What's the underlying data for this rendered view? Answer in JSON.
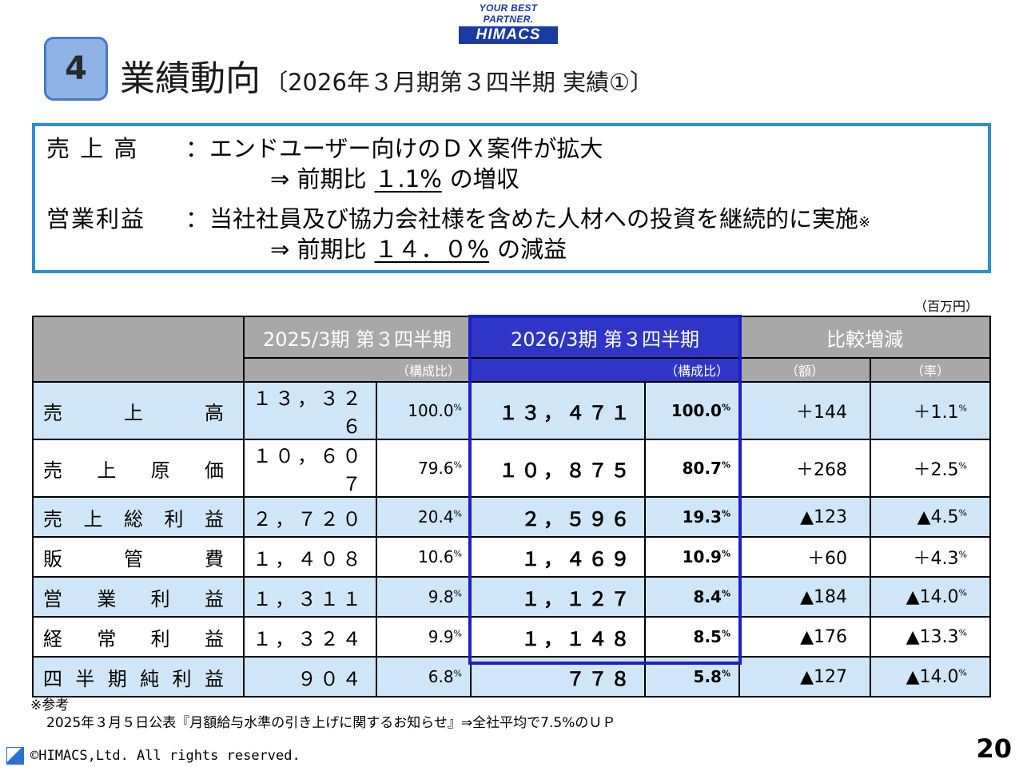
{
  "logo": {
    "tagline": "YOUR BEST PARTNER.",
    "wordmark": "HIMACS"
  },
  "section_number": "4",
  "title": {
    "main": "業績動向",
    "sub": "〔2026年３月期第３四半期 実績①〕"
  },
  "summary": {
    "sales_label": "売 上 高",
    "colon": "：",
    "sales_text": "エンドユーザー向けのＤＸ案件が拡大",
    "sales_arrow": "⇒ 前期比",
    "sales_pct": "１.1%",
    "sales_result": "の増収",
    "op_label": "営業利益",
    "op_text": "当社社員及び協力会社様を含めた人材への投資を継続的に実施",
    "op_note_mark": "※",
    "op_arrow": "⇒ 前期比",
    "op_pct": "１４．０%",
    "op_result": "の減益"
  },
  "unit": "（百万円）",
  "table": {
    "headers": {
      "prev": "2025/3期 第３四半期",
      "curr": "2026/3期 第３四半期",
      "diff": "比較増減",
      "ratio_label": "（構成比）",
      "amount_label": "（額）",
      "rate_label": "（率）"
    },
    "rows": [
      {
        "label": [
          "売",
          "上",
          "高"
        ],
        "prev": "１３，３２６",
        "prev_pct": "100.0",
        "curr": "１３，４７１",
        "curr_pct": "100.0",
        "diff": "＋144",
        "rate": "＋1.1"
      },
      {
        "label": [
          "売",
          "上",
          "原",
          "価"
        ],
        "prev": "１０，６０７",
        "prev_pct": "79.6",
        "curr": "１０，８７５",
        "curr_pct": "80.7",
        "diff": "＋268",
        "rate": "＋2.5"
      },
      {
        "label": [
          "売",
          "上",
          "総",
          "利",
          "益"
        ],
        "prev": "２，７２０",
        "prev_pct": "20.4",
        "curr": "２，５９６",
        "curr_pct": "19.3",
        "diff": "▲123",
        "rate": "▲4.5"
      },
      {
        "label": [
          "販",
          "管",
          "費"
        ],
        "prev": "１，４０８",
        "prev_pct": "10.6",
        "curr": "１，４６９",
        "curr_pct": "10.9",
        "diff": "＋60",
        "rate": "＋4.3"
      },
      {
        "label": [
          "営",
          "業",
          "利",
          "益"
        ],
        "prev": "１，３１１",
        "prev_pct": "9.8",
        "curr": "１，１２７",
        "curr_pct": "8.4",
        "diff": "▲184",
        "rate": "▲14.0"
      },
      {
        "label": [
          "経",
          "常",
          "利",
          "益"
        ],
        "prev": "１，３２４",
        "prev_pct": "9.9",
        "curr": "１，１４８",
        "curr_pct": "8.5",
        "diff": "▲176",
        "rate": "▲13.3"
      },
      {
        "label": [
          "四",
          "半",
          "期",
          "純",
          "利",
          "益"
        ],
        "prev": "９０４",
        "prev_pct": "6.8",
        "curr": "７７８",
        "curr_pct": "5.8",
        "diff": "▲127",
        "rate": "▲14.0"
      }
    ],
    "pct_mark": "%"
  },
  "footnote": {
    "title": "※参考",
    "text": "2025年３月５日公表『月額給与水準の引き上げに関するお知らせ』⇒全社平均で7.5%のＵＰ"
  },
  "copyright": "©HIMACS,Ltd. All rights reserved.",
  "page_number": "20"
}
